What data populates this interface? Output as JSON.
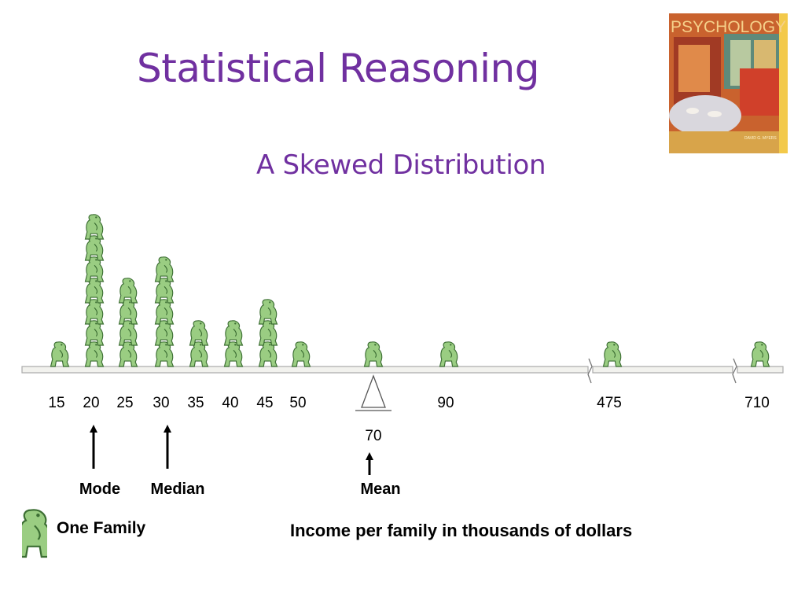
{
  "title": "Statistical Reasoning",
  "subtitle": "A Skewed Distribution",
  "book_cover": {
    "title_text": "PSYCHOLOGY",
    "author_text": "DAVID G. MYERS"
  },
  "distribution": [
    {
      "income": "15",
      "families": 1
    },
    {
      "income": "20",
      "families": 7
    },
    {
      "income": "25",
      "families": 4
    },
    {
      "income": "30",
      "families": 5
    },
    {
      "income": "35",
      "families": 2
    },
    {
      "income": "40",
      "families": 2
    },
    {
      "income": "45",
      "families": 3
    },
    {
      "income": "50",
      "families": 1
    },
    {
      "income": "70",
      "families": 1
    },
    {
      "income": "90",
      "families": 1
    },
    {
      "income": "475",
      "families": 1
    },
    {
      "income": "710",
      "families": 1
    }
  ],
  "markers": {
    "mode": "Mode",
    "median": "Median",
    "mean": "Mean",
    "mean_value": "70"
  },
  "legend": {
    "label": "One Family"
  },
  "axis_caption": "Income per family in thousands of dollars",
  "colors": {
    "title": "#7030a0",
    "figure_fill": "#9acd82",
    "figure_stroke": "#3c6e33",
    "axis": "#aaaaaa"
  }
}
